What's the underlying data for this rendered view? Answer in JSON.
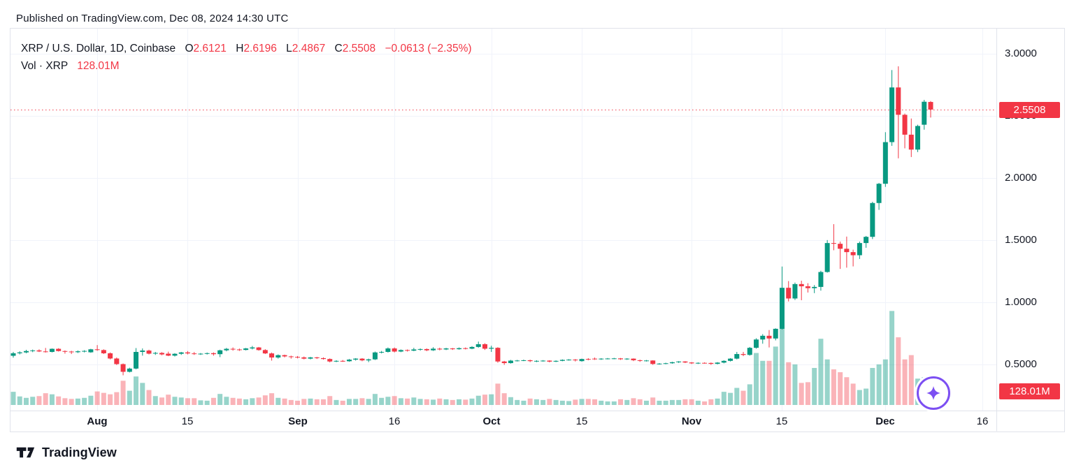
{
  "page": {
    "published": "Published on TradingView.com, Dec 08, 2024 14:30 UTC"
  },
  "colors": {
    "text": "#131722",
    "up": "#089981",
    "down": "#f23645",
    "vol_up": "rgba(8,153,129,0.42)",
    "vol_down": "rgba(242,54,69,0.38)",
    "grid": "#f0f3fa",
    "border": "#e0e3eb",
    "purple": "#7c4ff2",
    "badge_text": "#ffffff"
  },
  "legend": {
    "symbol": "XRP / U.S. Dollar, 1D, Coinbase",
    "o_label": "O",
    "o": "2.6121",
    "h_label": "H",
    "h": "2.6196",
    "l_label": "L",
    "l": "2.4867",
    "c_label": "C",
    "c": "2.5508",
    "change": "−0.0613 (−2.35%)",
    "vol_label": "Vol · XRP",
    "vol_value": "128.01M"
  },
  "price_axis": {
    "labels": [
      {
        "label": "3.0000",
        "value": 3.0
      },
      {
        "label": "2.5000",
        "value": 2.5
      },
      {
        "label": "2.0000",
        "value": 2.0
      },
      {
        "label": "1.5000",
        "value": 1.5
      },
      {
        "label": "1.0000",
        "value": 1.0
      },
      {
        "label": "0.5000",
        "value": 0.5
      }
    ],
    "current_badge": "2.5508",
    "volume_badge": "128.01M"
  },
  "time_axis": {
    "labels": [
      {
        "label": "Aug",
        "bold": true,
        "days_from_first_candle": 13
      },
      {
        "label": "15",
        "bold": false,
        "days_from_first_candle": 27
      },
      {
        "label": "Sep",
        "bold": true,
        "days_from_first_candle": 44
      },
      {
        "label": "16",
        "bold": false,
        "days_from_first_candle": 59
      },
      {
        "label": "Oct",
        "bold": true,
        "days_from_first_candle": 74
      },
      {
        "label": "15",
        "bold": false,
        "days_from_first_candle": 88
      },
      {
        "label": "Nov",
        "bold": true,
        "days_from_first_candle": 105
      },
      {
        "label": "15",
        "bold": false,
        "days_from_first_candle": 119
      },
      {
        "label": "Dec",
        "bold": true,
        "days_from_first_candle": 135
      },
      {
        "label": "16",
        "bold": false,
        "days_from_first_candle": 150
      }
    ]
  },
  "footer": {
    "brand": "TradingView"
  },
  "icons": {
    "boost": "sparkle-star-icon",
    "logo": "tradingview-logo-icon"
  },
  "chart_data": {
    "type": "candlestick",
    "title": "XRP / U.S. Dollar",
    "interval": "1D",
    "exchange": "Coinbase",
    "ohlc_current": {
      "open": 2.6121,
      "high": 2.6196,
      "low": 2.4867,
      "close": 2.5508,
      "change": -0.0613,
      "change_pct": -2.35
    },
    "current_price": 2.5508,
    "current_volume_m": 128.01,
    "price_gridlines": [
      3.0,
      2.5,
      2.0,
      1.5,
      1.0,
      0.5
    ],
    "price_axis_range": [
      0.28,
      3.1
    ],
    "legend_position": "top-left",
    "grid": true,
    "columns": [
      "date",
      "open",
      "high",
      "low",
      "close",
      "volume_m"
    ],
    "candles": [
      [
        "07-19",
        0.57,
        0.601,
        0.555,
        0.59,
        185
      ],
      [
        "07-20",
        0.59,
        0.606,
        0.581,
        0.597,
        120
      ],
      [
        "07-21",
        0.597,
        0.618,
        0.59,
        0.608,
        100
      ],
      [
        "07-22",
        0.608,
        0.62,
        0.599,
        0.613,
        115
      ],
      [
        "07-23",
        0.613,
        0.622,
        0.6,
        0.605,
        125
      ],
      [
        "07-24",
        0.605,
        0.633,
        0.596,
        0.601,
        165
      ],
      [
        "07-25",
        0.601,
        0.629,
        0.597,
        0.626,
        150
      ],
      [
        "07-26",
        0.626,
        0.631,
        0.604,
        0.608,
        120
      ],
      [
        "07-27",
        0.608,
        0.613,
        0.587,
        0.604,
        95
      ],
      [
        "07-28",
        0.604,
        0.61,
        0.584,
        0.599,
        85
      ],
      [
        "07-29",
        0.599,
        0.613,
        0.592,
        0.606,
        90
      ],
      [
        "07-30",
        0.606,
        0.615,
        0.597,
        0.609,
        100
      ],
      [
        "07-31",
        0.598,
        0.626,
        0.594,
        0.622,
        130
      ],
      [
        "08-01",
        0.622,
        0.656,
        0.61,
        0.616,
        190
      ],
      [
        "08-02",
        0.616,
        0.622,
        0.584,
        0.59,
        170
      ],
      [
        "08-03",
        0.59,
        0.597,
        0.541,
        0.548,
        150
      ],
      [
        "08-04",
        0.548,
        0.556,
        0.496,
        0.503,
        180
      ],
      [
        "08-05",
        0.503,
        0.508,
        0.413,
        0.441,
        340
      ],
      [
        "08-06",
        0.441,
        0.474,
        0.436,
        0.467,
        200
      ],
      [
        "08-07",
        0.467,
        0.632,
        0.461,
        0.601,
        400
      ],
      [
        "08-08",
        0.601,
        0.629,
        0.571,
        0.612,
        310
      ],
      [
        "08-09",
        0.612,
        0.619,
        0.581,
        0.587,
        210
      ],
      [
        "08-10",
        0.587,
        0.601,
        0.577,
        0.593,
        125
      ],
      [
        "08-11",
        0.593,
        0.599,
        0.574,
        0.581,
        105
      ],
      [
        "08-12",
        0.587,
        0.603,
        0.567,
        0.571,
        145
      ],
      [
        "08-13",
        0.571,
        0.591,
        0.564,
        0.586,
        115
      ],
      [
        "08-14",
        0.586,
        0.601,
        0.577,
        0.597,
        105
      ],
      [
        "08-15",
        0.597,
        0.608,
        0.581,
        0.589,
        95
      ],
      [
        "08-16",
        0.589,
        0.6,
        0.577,
        0.584,
        95
      ],
      [
        "08-17",
        0.584,
        0.592,
        0.577,
        0.587,
        65
      ],
      [
        "08-18",
        0.587,
        0.596,
        0.58,
        0.591,
        60
      ],
      [
        "08-19",
        0.591,
        0.597,
        0.571,
        0.583,
        100
      ],
      [
        "08-20",
        0.583,
        0.619,
        0.559,
        0.614,
        155
      ],
      [
        "08-21",
        0.614,
        0.633,
        0.606,
        0.626,
        115
      ],
      [
        "08-22",
        0.626,
        0.637,
        0.611,
        0.621,
        100
      ],
      [
        "08-23",
        0.621,
        0.628,
        0.609,
        0.617,
        90
      ],
      [
        "08-24",
        0.617,
        0.633,
        0.613,
        0.629,
        80
      ],
      [
        "08-25",
        0.629,
        0.649,
        0.621,
        0.637,
        95
      ],
      [
        "08-26",
        0.637,
        0.641,
        0.611,
        0.616,
        105
      ],
      [
        "08-27",
        0.616,
        0.623,
        0.584,
        0.589,
        135
      ],
      [
        "08-28",
        0.589,
        0.596,
        0.531,
        0.556,
        165
      ],
      [
        "08-29",
        0.556,
        0.581,
        0.547,
        0.575,
        100
      ],
      [
        "08-30",
        0.575,
        0.579,
        0.557,
        0.565,
        90
      ],
      [
        "08-31",
        0.565,
        0.571,
        0.547,
        0.561,
        70
      ],
      [
        "09-01",
        0.561,
        0.568,
        0.549,
        0.557,
        60
      ],
      [
        "09-02",
        0.557,
        0.564,
        0.541,
        0.547,
        85
      ],
      [
        "09-03",
        0.547,
        0.561,
        0.541,
        0.557,
        90
      ],
      [
        "09-04",
        0.557,
        0.561,
        0.544,
        0.551,
        80
      ],
      [
        "09-05",
        0.551,
        0.557,
        0.539,
        0.544,
        80
      ],
      [
        "09-06",
        0.544,
        0.549,
        0.517,
        0.524,
        125
      ],
      [
        "09-07",
        0.524,
        0.534,
        0.519,
        0.529,
        70
      ],
      [
        "09-08",
        0.529,
        0.536,
        0.521,
        0.526,
        60
      ],
      [
        "09-09",
        0.526,
        0.544,
        0.522,
        0.539,
        85
      ],
      [
        "09-10",
        0.539,
        0.551,
        0.531,
        0.547,
        85
      ],
      [
        "09-11",
        0.547,
        0.551,
        0.526,
        0.533,
        95
      ],
      [
        "09-12",
        0.533,
        0.547,
        0.519,
        0.541,
        85
      ],
      [
        "09-13",
        0.541,
        0.604,
        0.536,
        0.597,
        155
      ],
      [
        "09-14",
        0.597,
        0.609,
        0.589,
        0.601,
        100
      ],
      [
        "09-15",
        0.601,
        0.637,
        0.596,
        0.629,
        115
      ],
      [
        "09-16",
        0.629,
        0.637,
        0.597,
        0.604,
        125
      ],
      [
        "09-17",
        0.604,
        0.621,
        0.599,
        0.616,
        95
      ],
      [
        "09-18",
        0.616,
        0.621,
        0.604,
        0.611,
        90
      ],
      [
        "09-19",
        0.611,
        0.634,
        0.607,
        0.621,
        105
      ],
      [
        "09-20",
        0.621,
        0.629,
        0.611,
        0.624,
        85
      ],
      [
        "09-21",
        0.624,
        0.629,
        0.607,
        0.614,
        80
      ],
      [
        "09-22",
        0.614,
        0.639,
        0.609,
        0.627,
        75
      ],
      [
        "09-23",
        0.627,
        0.635,
        0.614,
        0.621,
        90
      ],
      [
        "09-24",
        0.621,
        0.634,
        0.616,
        0.629,
        80
      ],
      [
        "09-25",
        0.629,
        0.633,
        0.617,
        0.623,
        70
      ],
      [
        "09-26",
        0.623,
        0.637,
        0.619,
        0.631,
        80
      ],
      [
        "09-27",
        0.631,
        0.637,
        0.621,
        0.627,
        75
      ],
      [
        "09-28",
        0.627,
        0.647,
        0.623,
        0.641,
        90
      ],
      [
        "09-29",
        0.641,
        0.684,
        0.635,
        0.663,
        130
      ],
      [
        "09-30",
        0.663,
        0.671,
        0.617,
        0.627,
        145
      ],
      [
        "10-01",
        0.627,
        0.651,
        0.601,
        0.634,
        150
      ],
      [
        "10-02",
        0.634,
        0.639,
        0.514,
        0.524,
        300
      ],
      [
        "10-03",
        0.524,
        0.529,
        0.497,
        0.511,
        165
      ],
      [
        "10-04",
        0.511,
        0.537,
        0.507,
        0.531,
        110
      ],
      [
        "10-05",
        0.531,
        0.537,
        0.524,
        0.532,
        70
      ],
      [
        "10-06",
        0.532,
        0.539,
        0.527,
        0.534,
        60
      ],
      [
        "10-07",
        0.534,
        0.539,
        0.519,
        0.527,
        90
      ],
      [
        "10-08",
        0.527,
        0.534,
        0.519,
        0.529,
        80
      ],
      [
        "10-09",
        0.529,
        0.535,
        0.523,
        0.531,
        70
      ],
      [
        "10-10",
        0.531,
        0.534,
        0.517,
        0.523,
        85
      ],
      [
        "10-11",
        0.523,
        0.533,
        0.519,
        0.529,
        70
      ],
      [
        "10-12",
        0.529,
        0.541,
        0.526,
        0.537,
        60
      ],
      [
        "10-13",
        0.537,
        0.543,
        0.531,
        0.539,
        55
      ],
      [
        "10-14",
        0.539,
        0.544,
        0.524,
        0.534,
        75
      ],
      [
        "10-15",
        0.527,
        0.547,
        0.523,
        0.544,
        85
      ],
      [
        "10-16",
        0.544,
        0.551,
        0.534,
        0.541,
        85
      ],
      [
        "10-17",
        0.547,
        0.556,
        0.537,
        0.544,
        80
      ],
      [
        "10-18",
        0.544,
        0.551,
        0.537,
        0.547,
        60
      ],
      [
        "10-19",
        0.547,
        0.552,
        0.541,
        0.548,
        50
      ],
      [
        "10-20",
        0.548,
        0.553,
        0.542,
        0.549,
        50
      ],
      [
        "10-21",
        0.549,
        0.552,
        0.537,
        0.542,
        80
      ],
      [
        "10-22",
        0.542,
        0.551,
        0.537,
        0.547,
        70
      ],
      [
        "10-23",
        0.547,
        0.549,
        0.527,
        0.534,
        95
      ],
      [
        "10-24",
        0.534,
        0.539,
        0.521,
        0.529,
        80
      ],
      [
        "10-25",
        0.529,
        0.536,
        0.524,
        0.532,
        60
      ],
      [
        "10-26",
        0.532,
        0.534,
        0.497,
        0.504,
        105
      ],
      [
        "10-27",
        0.504,
        0.511,
        0.499,
        0.507,
        60
      ],
      [
        "10-28",
        0.507,
        0.514,
        0.502,
        0.51,
        60
      ],
      [
        "10-29",
        0.51,
        0.522,
        0.506,
        0.518,
        70
      ],
      [
        "10-30",
        0.518,
        0.527,
        0.512,
        0.524,
        70
      ],
      [
        "10-31",
        0.524,
        0.527,
        0.511,
        0.516,
        80
      ],
      [
        "11-01",
        0.516,
        0.519,
        0.504,
        0.509,
        80
      ],
      [
        "11-02",
        0.509,
        0.517,
        0.504,
        0.513,
        60
      ],
      [
        "11-03",
        0.513,
        0.517,
        0.507,
        0.512,
        50
      ],
      [
        "11-04",
        0.512,
        0.516,
        0.497,
        0.505,
        80
      ],
      [
        "11-05",
        0.505,
        0.519,
        0.501,
        0.515,
        90
      ],
      [
        "11-06",
        0.515,
        0.534,
        0.509,
        0.529,
        185
      ],
      [
        "11-07",
        0.529,
        0.551,
        0.524,
        0.547,
        170
      ],
      [
        "11-08",
        0.547,
        0.601,
        0.541,
        0.584,
        240
      ],
      [
        "11-09",
        0.584,
        0.601,
        0.567,
        0.577,
        200
      ],
      [
        "11-10",
        0.577,
        0.641,
        0.571,
        0.634,
        290
      ],
      [
        "11-11",
        0.634,
        0.711,
        0.627,
        0.701,
        730
      ],
      [
        "11-12",
        0.701,
        0.744,
        0.667,
        0.731,
        620
      ],
      [
        "11-13",
        0.731,
        0.777,
        0.637,
        0.709,
        620
      ],
      [
        "11-14",
        0.709,
        0.791,
        0.694,
        0.787,
        820
      ],
      [
        "11-15",
        0.787,
        1.288,
        0.781,
        1.117,
        1140
      ],
      [
        "11-16",
        1.117,
        1.171,
        1.007,
        1.031,
        600
      ],
      [
        "11-17",
        1.031,
        1.159,
        1.019,
        1.147,
        570
      ],
      [
        "11-18",
        1.147,
        1.174,
        1.017,
        1.129,
        310
      ],
      [
        "11-19",
        1.129,
        1.154,
        1.079,
        1.114,
        320
      ],
      [
        "11-20",
        1.114,
        1.139,
        1.074,
        1.124,
        520
      ],
      [
        "11-21",
        1.124,
        1.254,
        1.094,
        1.244,
        930
      ],
      [
        "11-22",
        1.244,
        1.501,
        1.239,
        1.477,
        640
      ],
      [
        "11-23",
        1.477,
        1.629,
        1.419,
        1.471,
        500
      ],
      [
        "11-24",
        1.471,
        1.489,
        1.269,
        1.431,
        460
      ],
      [
        "11-25",
        1.431,
        1.529,
        1.279,
        1.404,
        390
      ],
      [
        "11-26",
        1.404,
        1.424,
        1.289,
        1.379,
        300
      ],
      [
        "11-27",
        1.379,
        1.489,
        1.349,
        1.477,
        210
      ],
      [
        "11-28",
        1.477,
        1.534,
        1.439,
        1.527,
        230
      ],
      [
        "11-29",
        1.527,
        1.809,
        1.509,
        1.799,
        520
      ],
      [
        "11-30",
        1.799,
        1.961,
        1.744,
        1.954,
        570
      ],
      [
        "12-01",
        1.954,
        2.369,
        1.929,
        2.289,
        640
      ],
      [
        "12-02",
        2.289,
        2.869,
        2.259,
        2.729,
        1320
      ],
      [
        "12-03",
        2.729,
        2.899,
        2.159,
        2.509,
        950
      ],
      [
        "12-04",
        2.509,
        2.519,
        2.239,
        2.349,
        640
      ],
      [
        "12-05",
        2.349,
        2.479,
        2.169,
        2.229,
        700
      ],
      [
        "12-06",
        2.229,
        2.429,
        2.209,
        2.419,
        370
      ],
      [
        "12-07",
        2.429,
        2.629,
        2.389,
        2.614,
        390
      ],
      [
        "12-08",
        2.6121,
        2.6196,
        2.4867,
        2.5508,
        128.01
      ]
    ]
  }
}
